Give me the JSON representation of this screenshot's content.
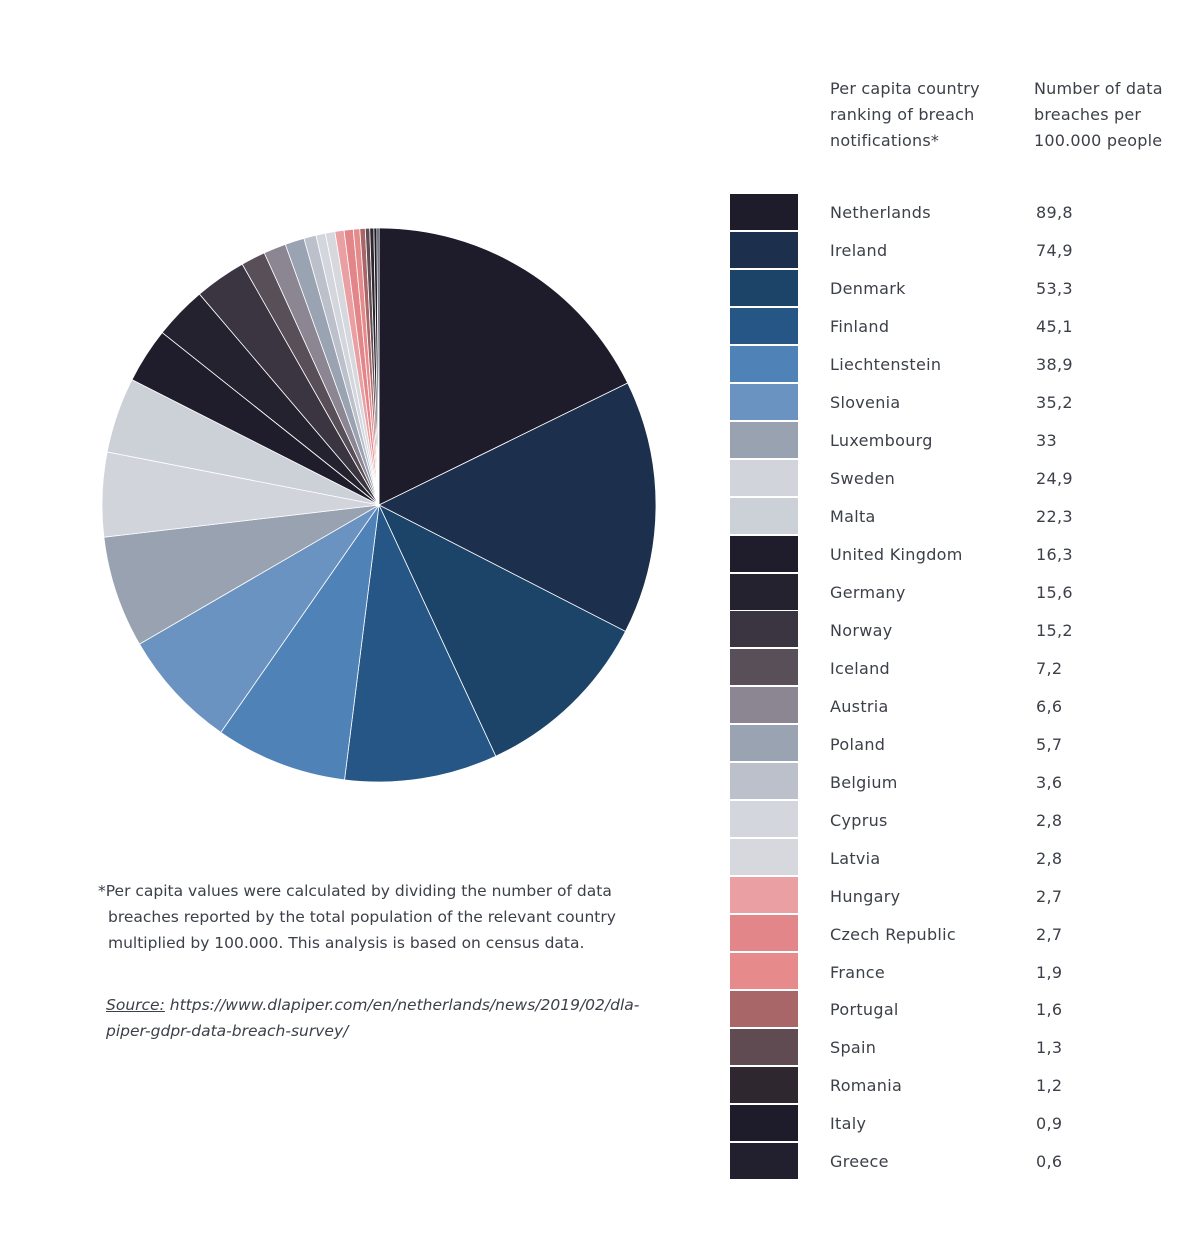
{
  "chart_data": {
    "type": "pie",
    "legend_headers": {
      "country": "Per capita country\nranking of breach\nnotifications*",
      "value": "Number of data\nbreaches per\n100.000 people"
    },
    "legend_placement": "right",
    "slices": [
      {
        "label": "Netherlands",
        "value": 89.8,
        "display": "89,8",
        "color": "#1e1b2b"
      },
      {
        "label": "Ireland",
        "value": 74.9,
        "display": "74,9",
        "color": "#1c2f4d"
      },
      {
        "label": "Denmark",
        "value": 53.3,
        "display": "53,3",
        "color": "#1b4468"
      },
      {
        "label": "Finland",
        "value": 45.1,
        "display": "45,1",
        "color": "#255686"
      },
      {
        "label": "Liechtenstein",
        "value": 38.9,
        "display": "38,9",
        "color": "#4f82b6"
      },
      {
        "label": "Slovenia",
        "value": 35.2,
        "display": "35,2",
        "color": "#6a93c2"
      },
      {
        "label": "Luxembourg",
        "value": 33,
        "display": "33",
        "color": "#98a2b1"
      },
      {
        "label": "Sweden",
        "value": 24.9,
        "display": "24,9",
        "color": "#d1d4db"
      },
      {
        "label": "Malta",
        "value": 22.3,
        "display": "22,3",
        "color": "#ccd0d7"
      },
      {
        "label": "United Kingdom",
        "value": 16.3,
        "display": "16,3",
        "color": "#1f1d2b"
      },
      {
        "label": "Germany",
        "value": 15.6,
        "display": "15,6",
        "color": "#25222f"
      },
      {
        "label": "Norway",
        "value": 15.2,
        "display": "15,2",
        "color": "#3a3541"
      },
      {
        "label": "Iceland",
        "value": 7.2,
        "display": "7,2",
        "color": "#594f59"
      },
      {
        "label": "Austria",
        "value": 6.6,
        "display": "6,6",
        "color": "#8c8592"
      },
      {
        "label": "Poland",
        "value": 5.7,
        "display": "5,7",
        "color": "#9aa3b1"
      },
      {
        "label": "Belgium",
        "value": 3.6,
        "display": "3,6",
        "color": "#bcc0cb"
      },
      {
        "label": "Cyprus",
        "value": 2.8,
        "display": "2,8",
        "color": "#d3d6dc"
      },
      {
        "label": "Latvia",
        "value": 2.8,
        "display": "2,8",
        "color": "#d6d8de"
      },
      {
        "label": "Hungary",
        "value": 2.7,
        "display": "2,7",
        "color": "#eaa0a2"
      },
      {
        "label": "Czech Republic",
        "value": 2.7,
        "display": "2,7",
        "color": "#e3868a"
      },
      {
        "label": "France",
        "value": 1.9,
        "display": "1,9",
        "color": "#e68a8c"
      },
      {
        "label": "Portugal",
        "value": 1.6,
        "display": "1,6",
        "color": "#a86668"
      },
      {
        "label": "Spain",
        "value": 1.3,
        "display": "1,3",
        "color": "#5f4b51"
      },
      {
        "label": "Romania",
        "value": 1.2,
        "display": "1,2",
        "color": "#2e2730"
      },
      {
        "label": "Italy",
        "value": 0.9,
        "display": "0,9",
        "color": "#1e1b2b"
      },
      {
        "label": "Greece",
        "value": 0.6,
        "display": "0,6",
        "color": "#221f2e"
      }
    ]
  },
  "footnote": {
    "star": "*",
    "text": "Per capita values were calculated by dividing the number of data breaches reported by the total population of the relevant country multiplied by 100.000. This analysis is based on census data."
  },
  "source": {
    "label": "Source:",
    "text": "https://www.dlapiper.com/en/netherlands/news/2019/02/dla-piper-gdpr-data-breach-survey/"
  }
}
